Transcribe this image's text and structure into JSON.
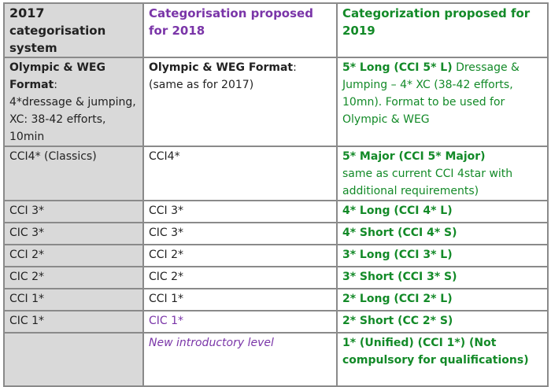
{
  "colors": {
    "purple": "#7a35a8",
    "green": "#138a28",
    "first_column_bg": "#d9d9d9"
  },
  "header": {
    "col1": "2017 categorisation system",
    "col1_year": "2017",
    "col1_rest": "categorisation system",
    "col2": "Categorisation proposed for 2018",
    "col3": "Categorization proposed for 2019"
  },
  "rows": [
    {
      "c1_bold": "Olympic & WEG Format",
      "c1_rest": ":",
      "c1_detail": "4*dressage & jumping, XC: 38-42 efforts, 10min",
      "c2_bold": "Olympic & WEG Format",
      "c2_rest": ":",
      "c2_detail": "(same as for 2017)",
      "c3_bold": "5* Long (CCI 5* L)",
      "c3_detail": " Dressage & Jumping – 4* XC (38-42 efforts, 10mn). Format to be used for Olympic & WEG"
    },
    {
      "c1": "CCI4* (Classics)",
      "c2": "CCI4*",
      "c3_bold": "5* Major (CCI 5* Major)",
      "c3_detail": "same as current CCI 4star with additional requirements)"
    },
    {
      "c1": "CCI 3*",
      "c2": "CCI 3*",
      "c3": "4* Long (CCI 4* L)"
    },
    {
      "c1": "CIC 3*",
      "c2": "CIC 3*",
      "c3": "4* Short (CCI 4* S)"
    },
    {
      "c1": "CCI 2*",
      "c2": "CCI 2*",
      "c3": "3* Long (CCI 3* L)"
    },
    {
      "c1": "CIC 2*",
      "c2": "CIC 2*",
      "c3": "3* Short (CCI 3* S)"
    },
    {
      "c1": "CCI 1*",
      "c2": "CCI 1*",
      "c3": "2* Long (CCI 2* L)"
    },
    {
      "c1": "CIC 1*",
      "c2": "CIC 1*",
      "c3": "2* Short (CC 2* S)"
    },
    {
      "c1": "",
      "c2": "New introductory level",
      "c3": "1* (Unified) (CCI 1*) (Not compulsory for qualifications)"
    }
  ]
}
